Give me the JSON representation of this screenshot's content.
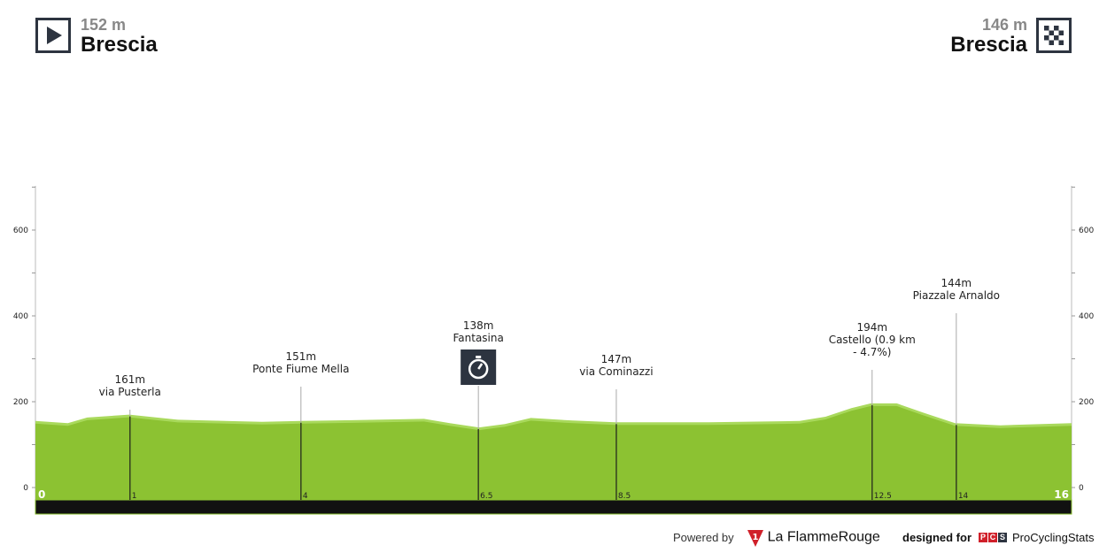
{
  "start": {
    "altitude": "152 m",
    "name": "Brescia",
    "icon": "play-icon"
  },
  "finish": {
    "altitude": "146 m",
    "name": "Brescia",
    "icon": "checkered-flag-icon"
  },
  "footer": {
    "powered_by": "Powered by",
    "brand": "La FlammeRouge",
    "brand_mark": "1",
    "designed_for": "designed for",
    "pcs_logo": "PCS",
    "pcs_name": "ProCyclingStats"
  },
  "colors": {
    "profile": "#8cc232",
    "profile_top": "#a9d95c",
    "base_bar": "#111111",
    "icon_dark": "#2d3440"
  },
  "chart_data": {
    "type": "area",
    "xlabel": "",
    "ylabel": "",
    "xlim": [
      0,
      16
    ],
    "ylim": [
      -30,
      700
    ],
    "y_ticks": [
      0,
      200,
      400,
      600
    ],
    "grid": false,
    "x_start_label": "0",
    "x_end_label": "16",
    "profile": {
      "km": [
        0,
        0.5,
        0.8,
        1.45,
        2.2,
        3.5,
        4.1,
        4.9,
        6.0,
        6.4,
        6.85,
        7.25,
        7.65,
        8.3,
        8.95,
        10.4,
        11.8,
        12.2,
        12.6,
        12.9,
        13.3,
        13.7,
        14.2,
        14.9,
        16
      ],
      "elevation": [
        155,
        150,
        163,
        170,
        158,
        153,
        155,
        157,
        160,
        150,
        140,
        148,
        162,
        156,
        152,
        152,
        155,
        165,
        185,
        196,
        196,
        175,
        150,
        145,
        150
      ]
    },
    "points": [
      {
        "km_label": "1",
        "elevation": "161m",
        "name": "via Pusterla"
      },
      {
        "km_label": "4",
        "elevation": "151m",
        "name": "Ponte Fiume Mella"
      },
      {
        "km_label": "6.5",
        "elevation": "138m",
        "name": "Fantasina",
        "icon": "stopwatch-icon"
      },
      {
        "km_label": "8.5",
        "elevation": "147m",
        "name": "via Cominazzi"
      },
      {
        "km_label": "12.5",
        "elevation": "194m",
        "name": "Castello (0.9 km",
        "name2": "- 4.7%)"
      },
      {
        "km_label": "14",
        "elevation": "144m",
        "name": "Piazzale Arnaldo"
      }
    ]
  }
}
